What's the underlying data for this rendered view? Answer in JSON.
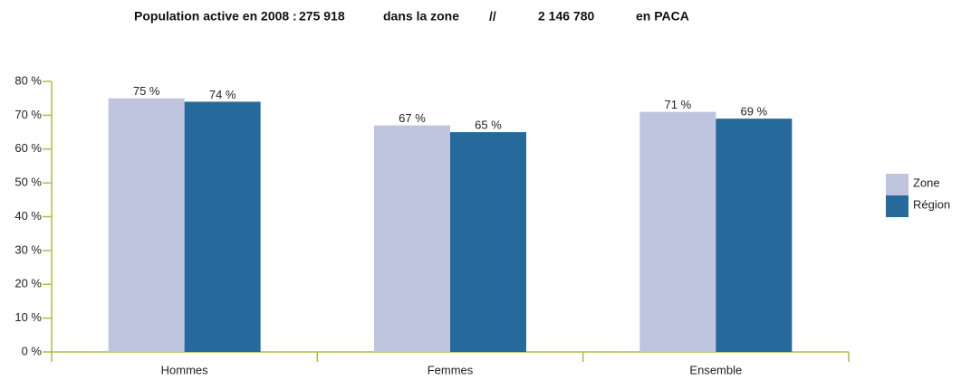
{
  "chart_data": {
    "type": "bar",
    "title_parts": [
      "Population active en 2008 :",
      "275 918",
      "dans la zone",
      "//",
      "2 146 780",
      "en PACA"
    ],
    "categories": [
      "Hommes",
      "Femmes",
      "Ensemble"
    ],
    "series": [
      {
        "name": "Zone",
        "color": "#bfc5de",
        "values": [
          75,
          67,
          71
        ],
        "value_labels": [
          "75 %",
          "67 %",
          "71 %"
        ]
      },
      {
        "name": "Région",
        "color": "#266a9c",
        "values": [
          74,
          65,
          69
        ],
        "value_labels": [
          "74 %",
          "65 %",
          "69 %"
        ]
      }
    ],
    "ylim": [
      0,
      80
    ],
    "yticks": [
      {
        "value": 0,
        "label": "0 %"
      },
      {
        "value": 10,
        "label": "10 %"
      },
      {
        "value": 20,
        "label": "20 %"
      },
      {
        "value": 30,
        "label": "30 %"
      },
      {
        "value": 40,
        "label": "40 %"
      },
      {
        "value": 50,
        "label": "50 %"
      },
      {
        "value": 60,
        "label": "60 %"
      },
      {
        "value": 70,
        "label": "70 %"
      },
      {
        "value": 80,
        "label": "80 %"
      }
    ],
    "axis_color": "#a8c040",
    "legend": "right"
  }
}
